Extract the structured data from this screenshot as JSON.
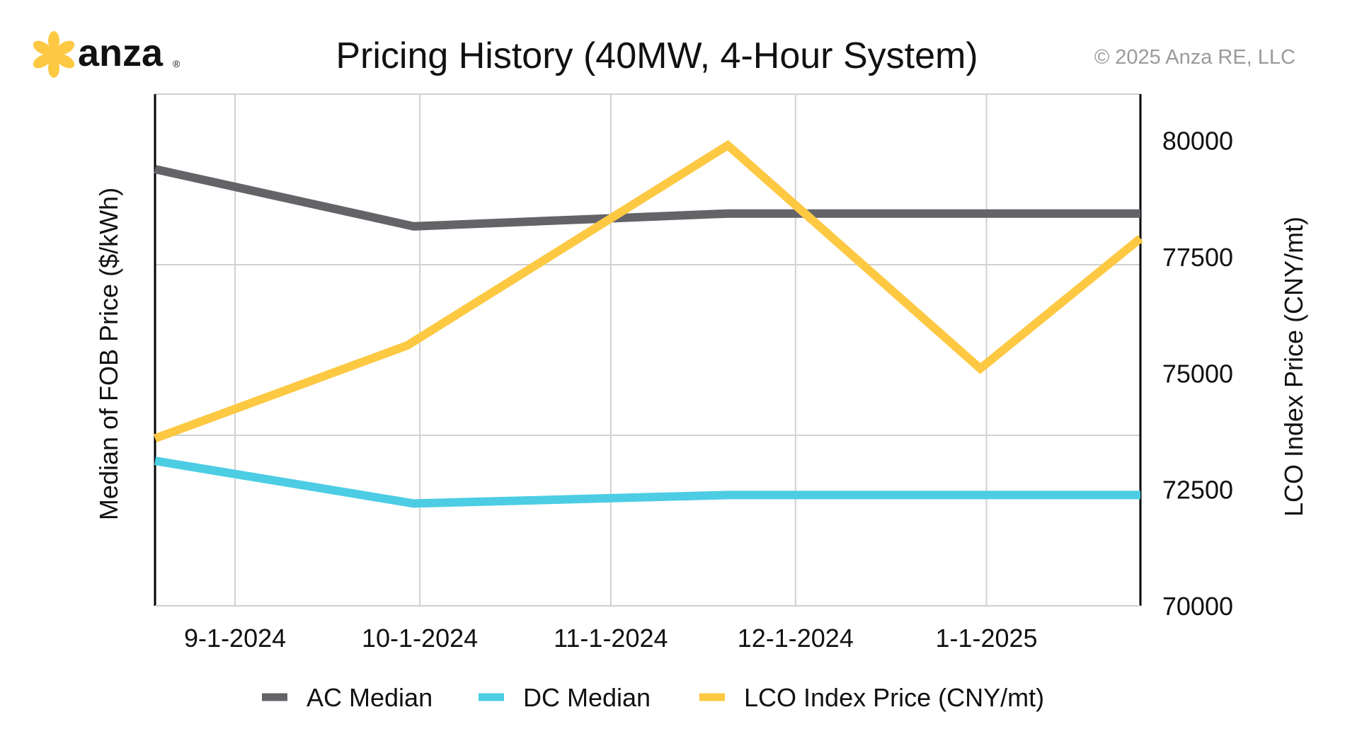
{
  "brand": {
    "name": "anza",
    "reg_mark": "®"
  },
  "copyright": "© 2025 Anza RE, LLC",
  "chart_data": {
    "type": "line",
    "title": "Pricing History (40MW, 4-Hour System)",
    "ylabel": "Median of FOB Price ($/kWh)",
    "y2label": "LCO Index Price (CNY/mt)",
    "x_ticks": [
      "9-1-2024",
      "10-1-2024",
      "11-1-2024",
      "12-1-2024",
      "1-1-2025"
    ],
    "x_tick_dates": [
      "2024-09-01",
      "2024-10-01",
      "2024-11-01",
      "2024-12-01",
      "2025-01-01"
    ],
    "x_range": [
      "2024-08-19",
      "2025-01-26"
    ],
    "y2_ticks": [
      "80000",
      "77500",
      "75000",
      "72500",
      "70000"
    ],
    "y2_range": [
      70000,
      81000
    ],
    "y_range": [
      0,
      6
    ],
    "grid": true,
    "legend_position": "bottom",
    "series": [
      {
        "name": "AC Median",
        "axis": "left",
        "color": "#636368",
        "x": [
          "2024-08-19",
          "2024-09-30",
          "2024-11-20",
          "2025-01-26"
        ],
        "y": [
          5.12,
          4.45,
          4.6,
          4.6
        ]
      },
      {
        "name": "DC Median",
        "axis": "left",
        "color": "#4ccde3",
        "x": [
          "2024-08-19",
          "2024-09-30",
          "2024-11-20",
          "2025-01-26"
        ],
        "y": [
          1.7,
          1.2,
          1.3,
          1.3
        ]
      },
      {
        "name": "LCO Index Price (CNY/mt)",
        "axis": "right",
        "color": "#fdc943",
        "x": [
          "2024-08-19",
          "2024-09-29",
          "2024-11-20",
          "2024-12-31",
          "2025-01-26"
        ],
        "y": [
          73600,
          75600,
          79900,
          75100,
          77900
        ]
      }
    ]
  }
}
